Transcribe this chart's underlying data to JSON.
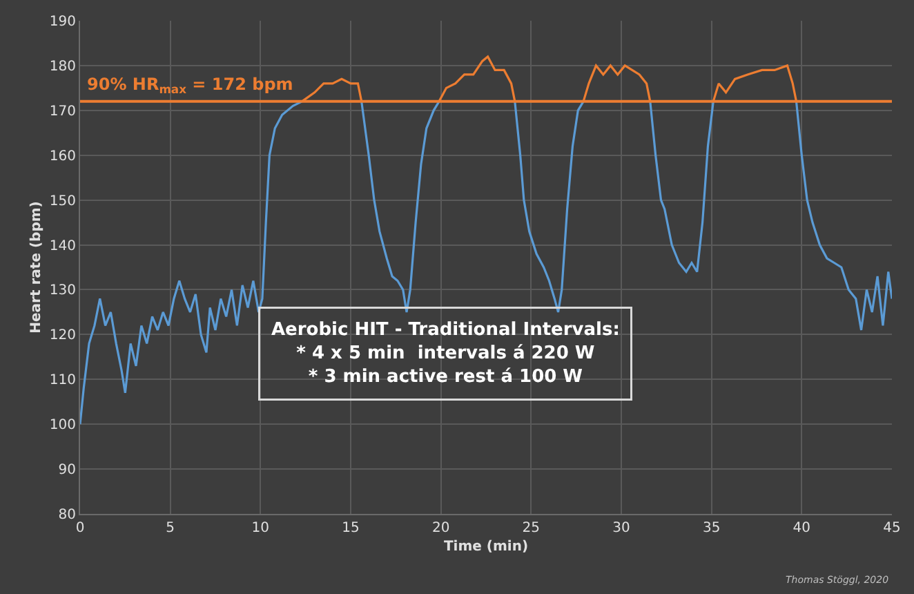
{
  "chart_data": {
    "type": "line",
    "xlabel": "Time (min)",
    "ylabel": "Heart rate (bpm)",
    "x": [
      0,
      0.2,
      0.5,
      0.8,
      1.1,
      1.4,
      1.7,
      2.0,
      2.3,
      2.5,
      2.8,
      3.1,
      3.4,
      3.7,
      4.0,
      4.3,
      4.6,
      4.9,
      5.2,
      5.5,
      5.8,
      6.1,
      6.4,
      6.7,
      7.0,
      7.2,
      7.5,
      7.8,
      8.1,
      8.4,
      8.7,
      9.0,
      9.3,
      9.6,
      9.9,
      10.1,
      10.3,
      10.5,
      10.8,
      11.2,
      11.8,
      12.3,
      13,
      13.5,
      14,
      14.5,
      15,
      15.4,
      15.6,
      16,
      16.3,
      16.6,
      17,
      17.3,
      17.6,
      17.9,
      18.1,
      18.3,
      18.6,
      18.9,
      19.2,
      19.6,
      19.9,
      20.3,
      20.8,
      21.3,
      21.8,
      22.3,
      22.6,
      23,
      23.5,
      23.9,
      24.1,
      24.4,
      24.6,
      24.9,
      25.3,
      25.7,
      26,
      26.3,
      26.5,
      26.7,
      27,
      27.3,
      27.6,
      27.9,
      28.2,
      28.6,
      29,
      29.4,
      29.8,
      30.2,
      30.6,
      31,
      31.4,
      31.6,
      31.9,
      32.2,
      32.4,
      32.8,
      33.2,
      33.6,
      33.9,
      34.2,
      34.5,
      34.8,
      35.1,
      35.4,
      35.8,
      36.3,
      37,
      37.8,
      38.5,
      39.2,
      39.5,
      39.7,
      40,
      40.3,
      40.6,
      41,
      41.4,
      41.8,
      42.2,
      42.6,
      43,
      43.3,
      43.6,
      43.9,
      44.2,
      44.5,
      44.8,
      45
    ],
    "series": [
      {
        "color": "#5b9bd5",
        "values": [
          100,
          108,
          118,
          122,
          128,
          122,
          125,
          118,
          112,
          107,
          118,
          113,
          122,
          118,
          124,
          121,
          125,
          122,
          128,
          132,
          128,
          125,
          129,
          120,
          116,
          126,
          121,
          128,
          124,
          130,
          122,
          131,
          126,
          132,
          125,
          128,
          145,
          160,
          166,
          169,
          171,
          172,
          null,
          null,
          null,
          null,
          null,
          null,
          172,
          160,
          150,
          143,
          137,
          133,
          132,
          130,
          125,
          130,
          145,
          158,
          166,
          170,
          172,
          null,
          null,
          null,
          null,
          null,
          null,
          null,
          null,
          null,
          172,
          160,
          150,
          143,
          138,
          135,
          132,
          128,
          125,
          130,
          148,
          162,
          170,
          172,
          null,
          null,
          null,
          null,
          null,
          null,
          null,
          null,
          null,
          172,
          160,
          150,
          148,
          140,
          136,
          134,
          136,
          134,
          145,
          162,
          172,
          null,
          null,
          null,
          null,
          null,
          null,
          null,
          null,
          172,
          160,
          150,
          145,
          140,
          137,
          136,
          135,
          130,
          128,
          121,
          130,
          125,
          133,
          122,
          134,
          128
        ]
      },
      {
        "color": "#ed7d31",
        "values": [
          null,
          null,
          null,
          null,
          null,
          null,
          null,
          null,
          null,
          null,
          null,
          null,
          null,
          null,
          null,
          null,
          null,
          null,
          null,
          null,
          null,
          null,
          null,
          null,
          null,
          null,
          null,
          null,
          null,
          null,
          null,
          null,
          null,
          null,
          null,
          null,
          null,
          null,
          null,
          null,
          null,
          172,
          174,
          176,
          176,
          177,
          176,
          176,
          172,
          null,
          null,
          null,
          null,
          null,
          null,
          null,
          null,
          null,
          null,
          null,
          null,
          null,
          172,
          175,
          176,
          178,
          178,
          181,
          182,
          179,
          179,
          176,
          172,
          null,
          null,
          null,
          null,
          null,
          null,
          null,
          null,
          null,
          null,
          null,
          null,
          172,
          176,
          180,
          178,
          180,
          178,
          180,
          179,
          178,
          176,
          172,
          null,
          null,
          null,
          null,
          null,
          null,
          null,
          null,
          null,
          null,
          172,
          176,
          174,
          177,
          178,
          179,
          179,
          180,
          176,
          172,
          null,
          null,
          null,
          null,
          null,
          null,
          null,
          null,
          null,
          null,
          null,
          null,
          null,
          null,
          null,
          null
        ]
      }
    ],
    "xlim": [
      0,
      45
    ],
    "xticks": [
      0,
      5,
      10,
      15,
      20,
      25,
      30,
      35,
      40,
      45
    ],
    "ylim": [
      80,
      190
    ],
    "yticks": [
      80,
      90,
      100,
      110,
      120,
      130,
      140,
      150,
      160,
      170,
      180,
      190
    ],
    "ref_lines": [
      {
        "axis": "y",
        "value": 172,
        "label": "90% HR$_{max}$ = 172 bpm",
        "color": "#ed7d31"
      }
    ],
    "annotations": [
      "Aerobic HIT - Traditional Intervals:\n* 4 x 5 min  intervals á 220 W\n* 3 min active rest á 100 W",
      "Thomas Stöggl, 2020"
    ],
    "grid": true,
    "marker": "none",
    "line_style": "solid"
  }
}
